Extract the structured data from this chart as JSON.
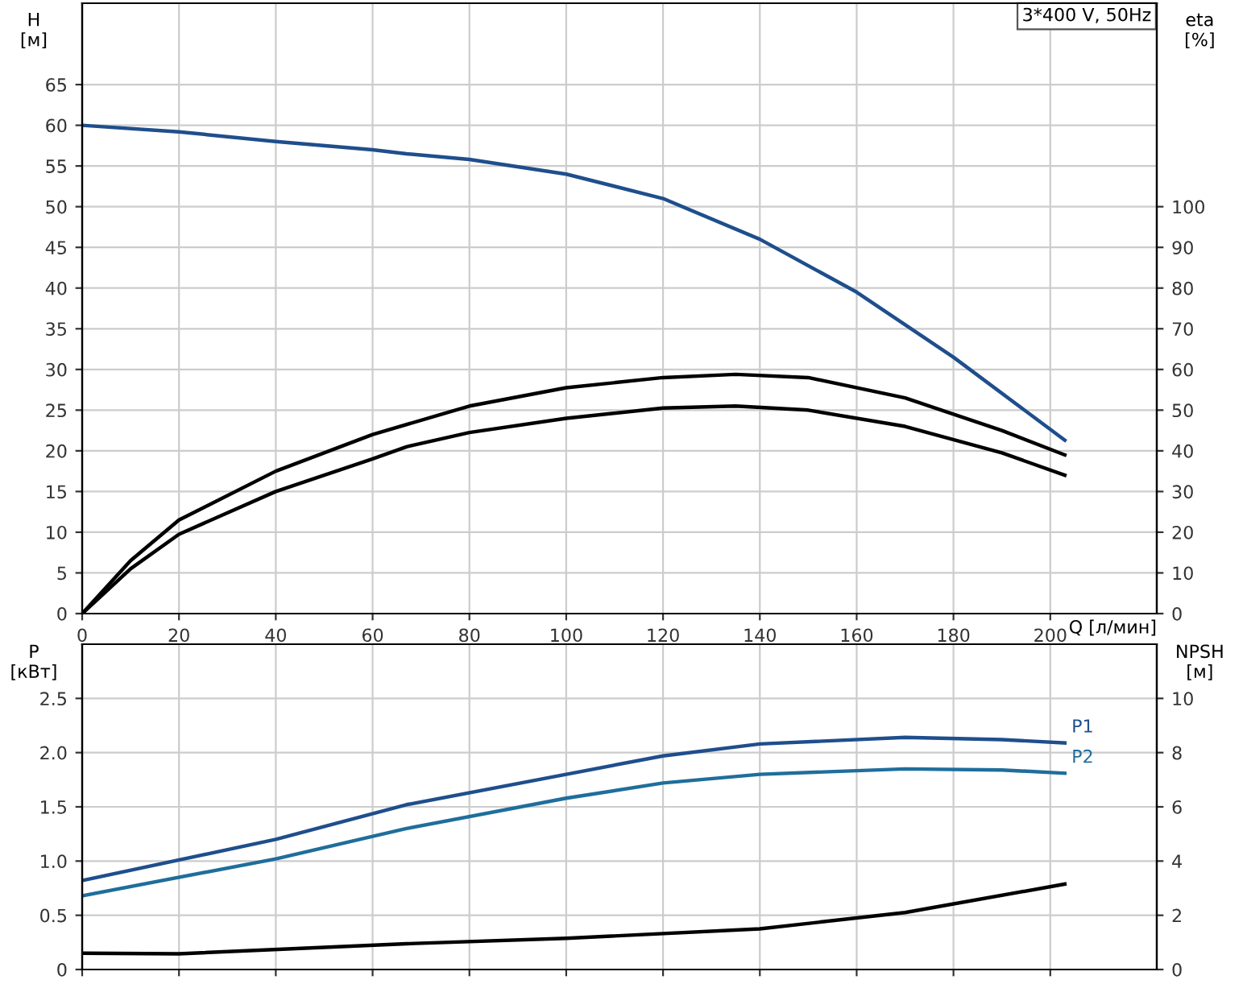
{
  "chart_data": [
    {
      "type": "line",
      "xlabel": "Q [л/мин]",
      "ylabel": "H\n[м]",
      "y2label": "eta\n[%]",
      "annotations": [
        "3*400 V, 50Hz"
      ],
      "xlim": [
        0,
        222
      ],
      "xticks": [
        0,
        20,
        40,
        60,
        80,
        100,
        120,
        140,
        160,
        180,
        200
      ],
      "ylim": [
        0,
        75
      ],
      "yticks": [
        0,
        5,
        10,
        15,
        20,
        25,
        30,
        35,
        40,
        45,
        50,
        55,
        60,
        65
      ],
      "y2lim": [
        0,
        150
      ],
      "y2ticks": [
        0,
        10,
        20,
        30,
        40,
        50,
        60,
        70,
        80,
        90,
        100
      ],
      "grid": true,
      "legend": false,
      "marker": "none",
      "line_style": "solid",
      "series": [
        {
          "color": "#1f4e8c",
          "x": [
            0,
            20,
            40,
            60,
            67,
            80,
            100,
            120,
            140,
            160,
            180,
            203
          ],
          "values": [
            60,
            59.2,
            58,
            57,
            56.5,
            55.8,
            54,
            51,
            46,
            39.5,
            31.5,
            21.3
          ]
        },
        {
          "color": "#000000",
          "axis": "y2",
          "x": [
            0,
            10,
            20,
            40,
            60,
            80,
            100,
            120,
            135,
            150,
            170,
            190,
            203
          ],
          "values": [
            0,
            13,
            23,
            35,
            44,
            51,
            55.5,
            58,
            58.8,
            58,
            53,
            45,
            39
          ]
        },
        {
          "color": "#000000",
          "axis": "y2",
          "x": [
            0,
            10,
            20,
            40,
            60,
            67,
            80,
            100,
            120,
            135,
            150,
            170,
            190,
            203
          ],
          "values": [
            0,
            11,
            19.5,
            30,
            38,
            41,
            44.5,
            48,
            50.5,
            51,
            50,
            46,
            39.5,
            34
          ]
        }
      ]
    },
    {
      "type": "line",
      "ylabel": "P\n[кВт]",
      "y2label": "NPSH\n[м]",
      "xlim": [
        0,
        222
      ],
      "xticks": [
        0,
        20,
        40,
        60,
        80,
        100,
        120,
        140,
        160,
        180,
        200
      ],
      "tick_labels": "y",
      "ylim": [
        0,
        3
      ],
      "yticks": [
        0,
        0.5,
        {
          "value": 1,
          "label": "1.0"
        },
        1.5,
        {
          "value": 2,
          "label": "2.0"
        },
        2.5
      ],
      "y2lim": [
        0,
        12
      ],
      "y2ticks": [
        0,
        2,
        4,
        6,
        8,
        10
      ],
      "grid": true,
      "legend": false,
      "marker": "none",
      "line_style": "solid",
      "series": [
        {
          "name": "P1",
          "color": "#1f4e8c",
          "x": [
            0,
            40,
            67,
            100,
            120,
            140,
            170,
            190,
            203
          ],
          "values": [
            0.82,
            1.2,
            1.52,
            1.8,
            1.97,
            2.08,
            2.14,
            2.12,
            2.09
          ]
        },
        {
          "name": "P2",
          "color": "#1f6e9c",
          "x": [
            0,
            40,
            67,
            100,
            120,
            140,
            170,
            190,
            203
          ],
          "values": [
            0.68,
            1.02,
            1.3,
            1.58,
            1.72,
            1.8,
            1.85,
            1.84,
            1.81
          ]
        },
        {
          "color": "#000000",
          "axis": "y2",
          "x": [
            0,
            20,
            67,
            100,
            140,
            170,
            203
          ],
          "values": [
            0.6,
            0.58,
            0.95,
            1.15,
            1.5,
            2.1,
            3.15
          ]
        }
      ]
    }
  ]
}
